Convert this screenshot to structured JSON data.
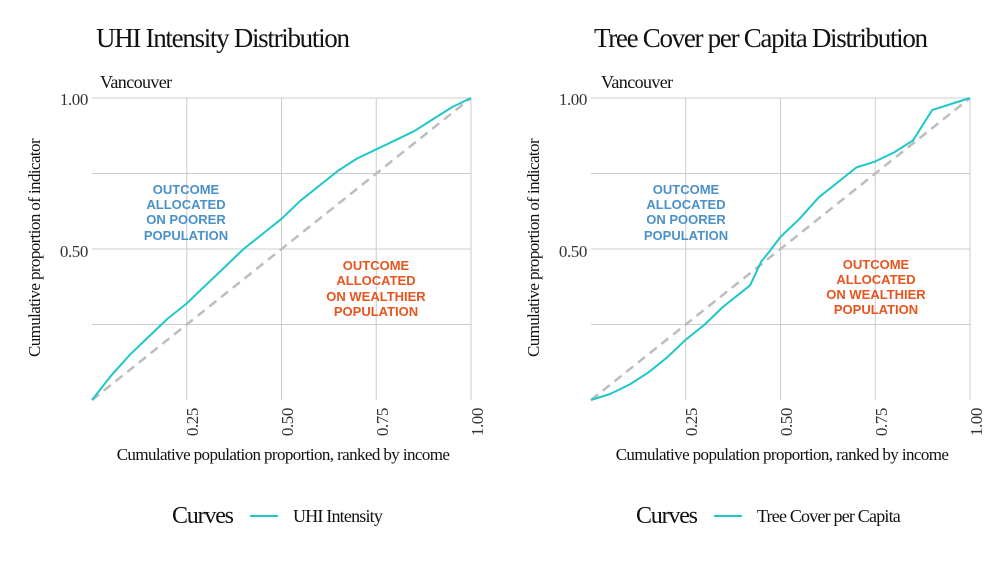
{
  "colors": {
    "curve": "#1fc7c9",
    "equality_line": "#bdbdbd",
    "grid": "#cccccc",
    "annot_poorer": "#4a90c9",
    "annot_wealthier": "#e8541d"
  },
  "chart_data": [
    {
      "type": "line",
      "title": "UHI Intensity Distribution",
      "subtitle": "Vancouver",
      "xlabel": "Cumulative population proportion, ranked by income",
      "ylabel": "Cumulative proportion of indicator",
      "xlim": [
        0,
        1
      ],
      "ylim": [
        0,
        1
      ],
      "x_ticks": [
        "0.25",
        "0.50",
        "0.75",
        "1.00"
      ],
      "y_ticks": [
        "0.50",
        "1.00"
      ],
      "grid": true,
      "legend": {
        "position": "bottom",
        "title": "Curves"
      },
      "annotations": {
        "poorer": [
          "OUTCOME",
          "ALLOCATED",
          "ON POORER",
          "POPULATION"
        ],
        "wealthier": [
          "OUTCOME",
          "ALLOCATED",
          "ON WEALTHIER",
          "POPULATION"
        ]
      },
      "series": [
        {
          "name": "UHI Intensity",
          "x": [
            0,
            0.05,
            0.1,
            0.15,
            0.2,
            0.25,
            0.3,
            0.35,
            0.4,
            0.45,
            0.5,
            0.55,
            0.6,
            0.65,
            0.7,
            0.75,
            0.8,
            0.85,
            0.9,
            0.95,
            1.0
          ],
          "y": [
            0,
            0.08,
            0.15,
            0.21,
            0.27,
            0.32,
            0.38,
            0.44,
            0.5,
            0.55,
            0.6,
            0.66,
            0.71,
            0.76,
            0.8,
            0.83,
            0.86,
            0.89,
            0.93,
            0.97,
            1.0
          ]
        },
        {
          "name": "equality",
          "x": [
            0,
            1
          ],
          "y": [
            0,
            1
          ]
        }
      ]
    },
    {
      "type": "line",
      "title": "Tree Cover per Capita Distribution",
      "subtitle": "Vancouver",
      "xlabel": "Cumulative population proportion, ranked by income",
      "ylabel": "Cumulative proportion of indicator",
      "xlim": [
        0,
        1
      ],
      "ylim": [
        0,
        1
      ],
      "x_ticks": [
        "0.25",
        "0.50",
        "0.75",
        "1.00"
      ],
      "y_ticks": [
        "0.50",
        "1.00"
      ],
      "grid": true,
      "legend": {
        "position": "bottom",
        "title": "Curves"
      },
      "annotations": {
        "poorer": [
          "OUTCOME",
          "ALLOCATED",
          "ON POORER",
          "POPULATION"
        ],
        "wealthier": [
          "OUTCOME",
          "ALLOCATED",
          "ON WEALTHIER",
          "POPULATION"
        ]
      },
      "series": [
        {
          "name": "Tree Cover per Capita",
          "x": [
            0,
            0.05,
            0.1,
            0.15,
            0.2,
            0.25,
            0.3,
            0.35,
            0.4,
            0.42,
            0.45,
            0.47,
            0.5,
            0.55,
            0.6,
            0.65,
            0.7,
            0.75,
            0.8,
            0.85,
            0.88,
            0.9,
            0.95,
            1.0
          ],
          "y": [
            0,
            0.02,
            0.05,
            0.09,
            0.14,
            0.2,
            0.25,
            0.31,
            0.36,
            0.38,
            0.46,
            0.49,
            0.54,
            0.6,
            0.67,
            0.72,
            0.77,
            0.79,
            0.82,
            0.86,
            0.92,
            0.96,
            0.98,
            1.0
          ]
        },
        {
          "name": "equality",
          "x": [
            0,
            1
          ],
          "y": [
            0,
            1
          ]
        }
      ]
    }
  ]
}
